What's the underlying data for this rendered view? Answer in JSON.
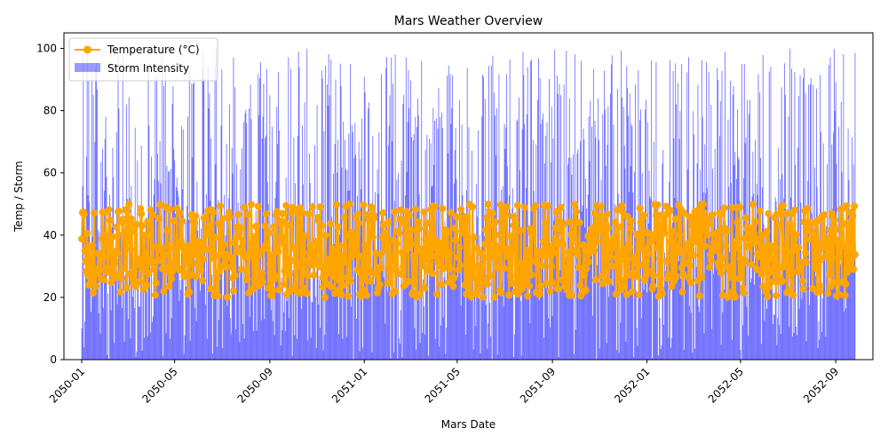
{
  "chart_data": {
    "type": "bar+line",
    "title": "Mars Weather Overview",
    "xlabel": "Mars Date",
    "ylabel": "Temp / Storm",
    "xlim": [
      "2049-12-09",
      "2052-10-19"
    ],
    "ylim": [
      0,
      105
    ],
    "date_range": [
      "2050-01-01",
      "2052-09-26"
    ],
    "x_ticks": [
      "2050-01",
      "2050-05",
      "2050-09",
      "2051-01",
      "2051-05",
      "2051-09",
      "2052-01",
      "2052-05",
      "2052-09"
    ],
    "y_ticks": [
      0,
      20,
      40,
      60,
      80,
      100
    ],
    "legend_position": "upper-left",
    "series": [
      {
        "name": "Temperature (°C)",
        "kind": "line",
        "color": "#ffa500",
        "marker": "circle",
        "value_range": [
          20,
          50
        ]
      },
      {
        "name": "Storm Intensity",
        "kind": "bar",
        "color": "#0000ff",
        "alpha": 0.4,
        "value_range": [
          0,
          100
        ]
      }
    ]
  }
}
